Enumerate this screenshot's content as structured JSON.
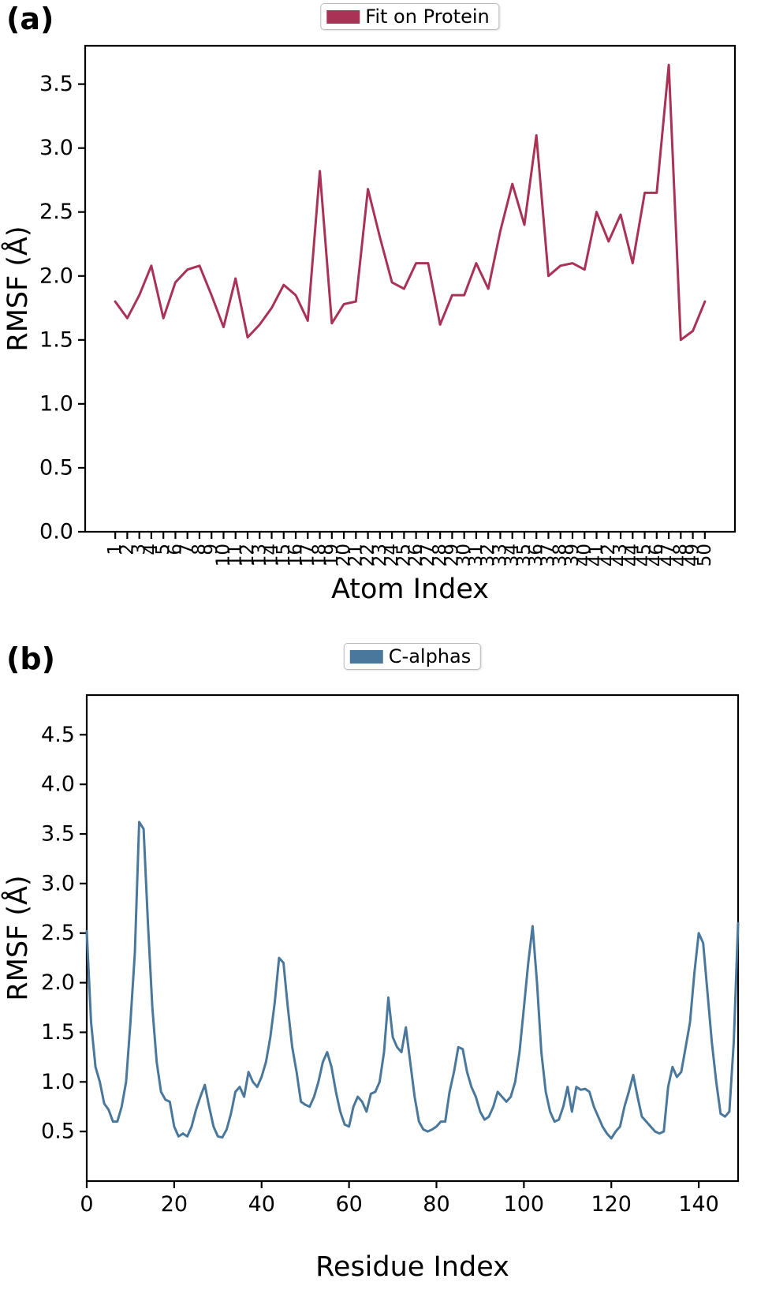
{
  "panels": [
    {
      "panel_label": "(a)",
      "legend_label": "Fit on Protein",
      "xlabel": "Atom Index",
      "ylabel": "RMSF (Å)",
      "line_color": "#a93256"
    },
    {
      "panel_label": "(b)",
      "legend_label": "C-alphas",
      "xlabel": "Residue Index",
      "ylabel": "RMSF (Å)",
      "line_color": "#4a789c"
    }
  ],
  "chart_data": [
    {
      "type": "line",
      "series_name": "Fit on Protein",
      "legend": "Fit on Protein",
      "legend_position": "upper center outside",
      "grid": false,
      "xlabel": "Atom Index",
      "ylabel": "RMSF (Å)",
      "color": "#a93256",
      "xlim": [
        -1.5,
        52.5
      ],
      "ylim": [
        0,
        3.8
      ],
      "yticks": [
        0,
        0.5,
        1.0,
        1.5,
        2.0,
        2.5,
        3.0,
        3.5
      ],
      "ytick_labels": [
        "0.0",
        "0.5",
        "1.0",
        "1.5",
        "2.0",
        "2.5",
        "3.0",
        "3.5"
      ],
      "xticks": [
        1,
        2,
        3,
        4,
        5,
        6,
        7,
        8,
        9,
        10,
        11,
        12,
        13,
        14,
        15,
        16,
        17,
        18,
        19,
        20,
        21,
        22,
        23,
        24,
        25,
        26,
        27,
        28,
        29,
        30,
        31,
        32,
        33,
        34,
        35,
        36,
        37,
        38,
        39,
        40,
        41,
        42,
        43,
        44,
        45,
        46,
        47,
        48,
        49,
        50
      ],
      "xtick_labels": [
        "1",
        "2",
        "3",
        "4",
        "5",
        "6",
        "7",
        "8",
        "9",
        "10",
        "11",
        "12",
        "13",
        "14",
        "15",
        "16",
        "17",
        "18",
        "19",
        "20",
        "21",
        "22",
        "23",
        "24",
        "25",
        "26",
        "27",
        "28",
        "29",
        "30",
        "31",
        "32",
        "33",
        "34",
        "35",
        "36",
        "37",
        "38",
        "39",
        "40",
        "41",
        "42",
        "43",
        "44",
        "45",
        "46",
        "47",
        "48",
        "49",
        "50"
      ],
      "xtick_rotation": 90,
      "x": [
        1,
        2,
        3,
        4,
        5,
        6,
        7,
        8,
        9,
        10,
        11,
        12,
        13,
        14,
        15,
        16,
        17,
        18,
        19,
        20,
        21,
        22,
        23,
        24,
        25,
        26,
        27,
        28,
        29,
        30,
        31,
        32,
        33,
        34,
        35,
        36,
        37,
        38,
        39,
        40,
        41,
        42,
        43,
        44,
        45,
        46,
        47,
        48,
        49,
        50
      ],
      "values": [
        1.8,
        1.67,
        1.85,
        2.08,
        1.67,
        1.95,
        2.05,
        2.08,
        1.85,
        1.6,
        1.98,
        1.52,
        1.62,
        1.75,
        1.93,
        1.85,
        1.65,
        2.82,
        1.63,
        1.78,
        1.8,
        2.68,
        2.3,
        1.95,
        1.9,
        2.1,
        2.1,
        1.62,
        1.85,
        1.85,
        2.1,
        1.9,
        2.35,
        2.72,
        2.4,
        3.1,
        2.0,
        2.08,
        2.1,
        2.05,
        2.5,
        2.27,
        2.48,
        2.1,
        2.65,
        2.65,
        3.65,
        1.5,
        1.57,
        1.8
      ]
    },
    {
      "type": "line",
      "series_name": "C-alphas",
      "legend": "C-alphas",
      "legend_position": "upper center outside",
      "grid": false,
      "xlabel": "Residue Index",
      "ylabel": "RMSF (Å)",
      "color": "#4a789c",
      "xlim": [
        0,
        149
      ],
      "ylim": [
        0,
        4.9
      ],
      "yticks": [
        0.5,
        1.0,
        1.5,
        2.0,
        2.5,
        3.0,
        3.5,
        4.0,
        4.5
      ],
      "ytick_labels": [
        "0.5",
        "1.0",
        "1.5",
        "2.0",
        "2.5",
        "3.0",
        "3.5",
        "4.0",
        "4.5"
      ],
      "xticks": [
        0,
        20,
        40,
        60,
        80,
        100,
        120,
        140
      ],
      "xtick_labels": [
        "0",
        "20",
        "40",
        "60",
        "80",
        "100",
        "120",
        "140"
      ],
      "xtick_rotation": 0,
      "x": [
        0,
        1,
        2,
        3,
        4,
        5,
        6,
        7,
        8,
        9,
        10,
        11,
        12,
        13,
        14,
        15,
        16,
        17,
        18,
        19,
        20,
        21,
        22,
        23,
        24,
        25,
        26,
        27,
        28,
        29,
        30,
        31,
        32,
        33,
        34,
        35,
        36,
        37,
        38,
        39,
        40,
        41,
        42,
        43,
        44,
        45,
        46,
        47,
        48,
        49,
        50,
        51,
        52,
        53,
        54,
        55,
        56,
        57,
        58,
        59,
        60,
        61,
        62,
        63,
        64,
        65,
        66,
        67,
        68,
        69,
        70,
        71,
        72,
        73,
        74,
        75,
        76,
        77,
        78,
        79,
        80,
        81,
        82,
        83,
        84,
        85,
        86,
        87,
        88,
        89,
        90,
        91,
        92,
        93,
        94,
        95,
        96,
        97,
        98,
        99,
        100,
        101,
        102,
        103,
        104,
        105,
        106,
        107,
        108,
        109,
        110,
        111,
        112,
        113,
        114,
        115,
        116,
        117,
        118,
        119,
        120,
        121,
        122,
        123,
        124,
        125,
        126,
        127,
        128,
        129,
        130,
        131,
        132,
        133,
        134,
        135,
        136,
        137,
        138,
        139,
        140,
        141,
        142,
        143,
        144,
        145,
        146,
        147,
        148,
        149
      ],
      "values": [
        2.52,
        1.6,
        1.15,
        1.0,
        0.78,
        0.72,
        0.6,
        0.6,
        0.75,
        1.0,
        1.6,
        2.3,
        3.62,
        3.55,
        2.6,
        1.75,
        1.2,
        0.9,
        0.82,
        0.8,
        0.55,
        0.45,
        0.48,
        0.45,
        0.55,
        0.72,
        0.85,
        0.97,
        0.75,
        0.55,
        0.45,
        0.44,
        0.52,
        0.68,
        0.9,
        0.95,
        0.85,
        1.1,
        1.0,
        0.95,
        1.05,
        1.2,
        1.45,
        1.8,
        2.25,
        2.2,
        1.75,
        1.35,
        1.1,
        0.8,
        0.77,
        0.75,
        0.85,
        1.0,
        1.2,
        1.3,
        1.15,
        0.9,
        0.7,
        0.57,
        0.55,
        0.75,
        0.85,
        0.8,
        0.7,
        0.88,
        0.9,
        1.0,
        1.3,
        1.85,
        1.45,
        1.35,
        1.3,
        1.55,
        1.2,
        0.85,
        0.6,
        0.52,
        0.5,
        0.52,
        0.55,
        0.6,
        0.6,
        0.9,
        1.1,
        1.35,
        1.33,
        1.1,
        0.95,
        0.85,
        0.7,
        0.62,
        0.65,
        0.75,
        0.9,
        0.85,
        0.8,
        0.85,
        1.0,
        1.3,
        1.75,
        2.2,
        2.57,
        2.0,
        1.3,
        0.9,
        0.7,
        0.6,
        0.62,
        0.75,
        0.95,
        0.7,
        0.95,
        0.92,
        0.93,
        0.9,
        0.75,
        0.65,
        0.55,
        0.48,
        0.43,
        0.5,
        0.55,
        0.75,
        0.9,
        1.07,
        0.85,
        0.65,
        0.6,
        0.55,
        0.5,
        0.48,
        0.5,
        0.95,
        1.15,
        1.05,
        1.1,
        1.35,
        1.6,
        2.1,
        2.5,
        2.4,
        1.9,
        1.4,
        1.0,
        0.68,
        0.65,
        0.7,
        1.4,
        2.6
      ]
    }
  ]
}
